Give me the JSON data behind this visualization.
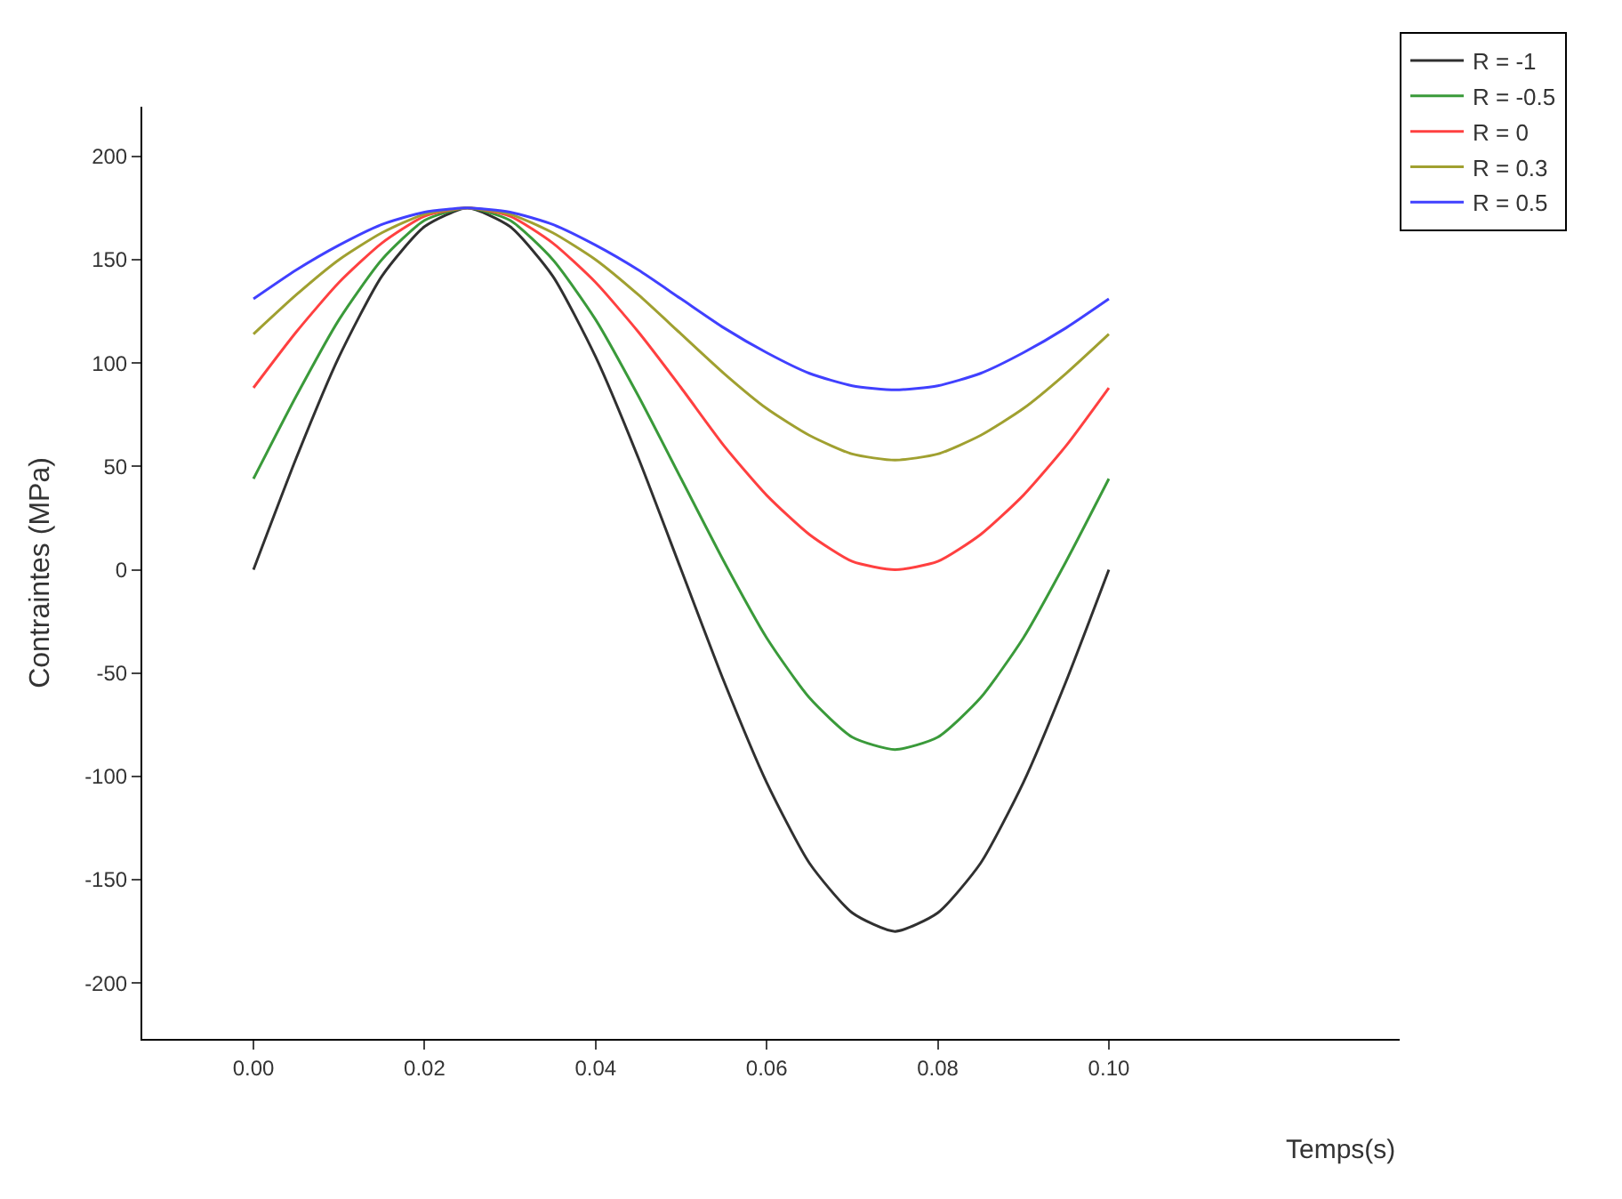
{
  "chart_data": {
    "type": "line",
    "xlabel": "Temps(s)",
    "ylabel": "Contraintes (MPa)",
    "x": [
      0,
      0.005,
      0.01,
      0.015,
      0.02,
      0.025,
      0.03,
      0.035,
      0.04,
      0.045,
      0.05,
      0.055,
      0.06,
      0.065,
      0.07,
      0.075,
      0.08,
      0.085,
      0.09,
      0.095,
      0.1
    ],
    "series": [
      {
        "name": "R = -1",
        "color": "#303030",
        "values": [
          0,
          54,
          103,
          142,
          166,
          175,
          166,
          142,
          103,
          54,
          0,
          -54,
          -103,
          -142,
          -166,
          -175,
          -166,
          -142,
          -103,
          -54,
          0
        ]
      },
      {
        "name": "R = -0.5",
        "color": "#3a9a3a",
        "values": [
          44,
          84,
          121,
          150,
          169,
          175,
          169,
          150,
          121,
          84,
          44,
          4,
          -33,
          -62,
          -81,
          -87,
          -81,
          -62,
          -33,
          4,
          44
        ]
      },
      {
        "name": "R = 0",
        "color": "#ff4040",
        "values": [
          88,
          115,
          139,
          158,
          171,
          175,
          171,
          158,
          139,
          115,
          88,
          60,
          36,
          17,
          4,
          0,
          4,
          17,
          36,
          60,
          88
        ]
      },
      {
        "name": "R = 0.3",
        "color": "#a0a030",
        "values": [
          114,
          133,
          150,
          163,
          172,
          175,
          172,
          163,
          150,
          133,
          114,
          95,
          78,
          65,
          56,
          53,
          56,
          65,
          78,
          95,
          114
        ]
      },
      {
        "name": "R = 0.5",
        "color": "#4040ff",
        "values": [
          131,
          145,
          157,
          167,
          173,
          175,
          173,
          167,
          157,
          145,
          131,
          117,
          105,
          95,
          89,
          87,
          89,
          95,
          105,
          117,
          131
        ]
      }
    ],
    "xlim": [
      -0.013,
      0.134
    ],
    "xticks": [
      {
        "value": 0,
        "label": "0.00"
      },
      {
        "value": 0.02,
        "label": "0.02"
      },
      {
        "value": 0.04,
        "label": "0.04"
      },
      {
        "value": 0.06,
        "label": "0.06"
      },
      {
        "value": 0.08,
        "label": "0.08"
      },
      {
        "value": 0.1,
        "label": "0.10"
      }
    ],
    "ylim": [
      -227,
      224
    ],
    "yticks": [
      -200,
      -150,
      -100,
      -50,
      0,
      50,
      100,
      150,
      200
    ],
    "legend": "top right",
    "marker": "none",
    "line_style": "solid"
  }
}
